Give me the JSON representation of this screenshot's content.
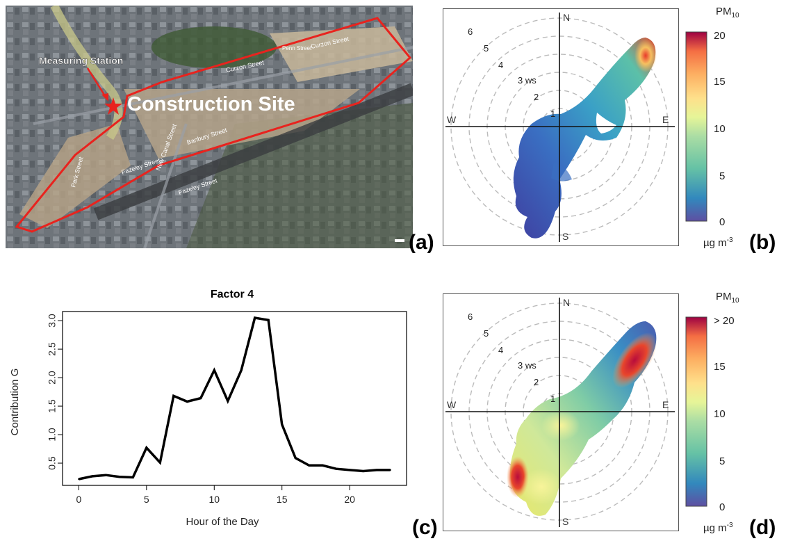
{
  "panel_labels": {
    "a": "(a)",
    "b": "(b)",
    "c": "(c)",
    "d": "(d)"
  },
  "map": {
    "measuring_station_label": "Measuring Station",
    "construction_site_label": "Construction Site",
    "street_labels": [
      "Curzon Street",
      "Curzon Street",
      "New Canal Street",
      "Banbury Street",
      "Fazeley Street",
      "Fazeley Street",
      "Park Street",
      "Penn Street"
    ],
    "colors": {
      "boundary": "#e8231e",
      "marker": "#e8231e"
    }
  },
  "polar_common": {
    "compass": {
      "n": "N",
      "s": "S",
      "e": "E",
      "w": "W"
    },
    "ws_labels": [
      "1",
      "2",
      "3 ws",
      "4",
      "5",
      "6"
    ],
    "pollutant_label": "PM",
    "pollutant_sub": "10",
    "unit_base": "µg m",
    "unit_sup": "-3"
  },
  "polar_b": {
    "colorbar_ticks": [
      "20",
      "15",
      "10",
      "5",
      "0"
    ]
  },
  "polar_d": {
    "colorbar_ticks": [
      "> 20",
      "15",
      "10",
      "5",
      "0"
    ]
  },
  "chart_data": [
    {
      "type": "line",
      "title": "Factor 4",
      "xlabel": "Hour of the Day",
      "ylabel": "Contribution G",
      "x": [
        0,
        1,
        2,
        3,
        4,
        5,
        6,
        7,
        8,
        9,
        10,
        11,
        12,
        13,
        14,
        15,
        16,
        17,
        18,
        19,
        20,
        21,
        22,
        23
      ],
      "y": [
        0.22,
        0.27,
        0.29,
        0.26,
        0.25,
        0.77,
        0.51,
        1.68,
        1.58,
        1.64,
        2.13,
        1.59,
        2.13,
        3.05,
        3.01,
        1.18,
        0.59,
        0.46,
        0.46,
        0.4,
        0.38,
        0.36,
        0.38,
        0.38
      ],
      "xlim": [
        0,
        23
      ],
      "ylim": [
        0.22,
        3.05
      ],
      "xticks": [
        0,
        5,
        10,
        15,
        20
      ],
      "yticks": [
        "0.5",
        "1.0",
        "1.5",
        "2.0",
        "2.5",
        "3.0"
      ],
      "line_color": "#000000"
    }
  ]
}
